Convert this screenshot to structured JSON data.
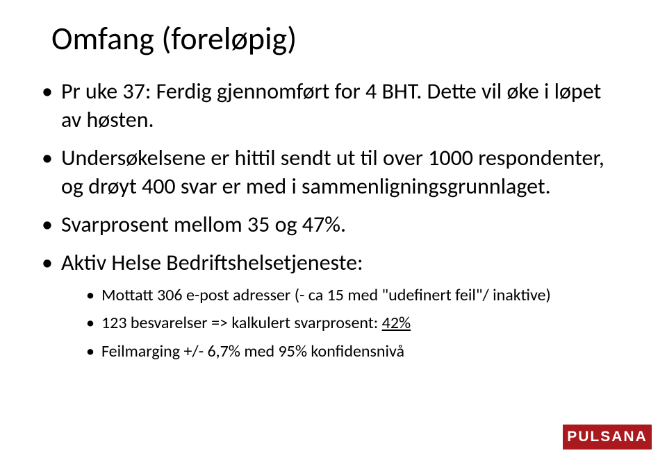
{
  "title": "Omfang (foreløpig)",
  "bullets": [
    {
      "text": "Pr uke 37: Ferdig gjennomført for 4 BHT. Dette vil øke i løpet av høsten."
    },
    {
      "text": "Undersøkelsene er hittil sendt ut til over 1000 respondenter, og drøyt 400 svar er med i sammenligningsgrunnlaget."
    },
    {
      "text": "Svarprosent mellom 35 og 47%."
    },
    {
      "text": "Aktiv Helse Bedriftshelsetjeneste:",
      "sub": [
        {
          "text": "Mottatt 306 e-post adresser (- ca 15 med \"udefinert feil\"/ inaktive)"
        },
        {
          "prefix": "123 besvarelser => kalkulert svarprosent: ",
          "underlined": "42%"
        },
        {
          "text": "Feilmarging +/-  6,7% med 95% konfidensnivå"
        }
      ]
    }
  ],
  "logo": {
    "text": "PULSANA",
    "background": "#a9191d",
    "text_color": "#ffffff"
  },
  "styling": {
    "background_color": "#ffffff",
    "title_fontsize": 46,
    "title_color": "#000000",
    "level1_fontsize": 32,
    "level2_fontsize": 24,
    "body_color": "#000000",
    "font_family": "Calibri"
  }
}
